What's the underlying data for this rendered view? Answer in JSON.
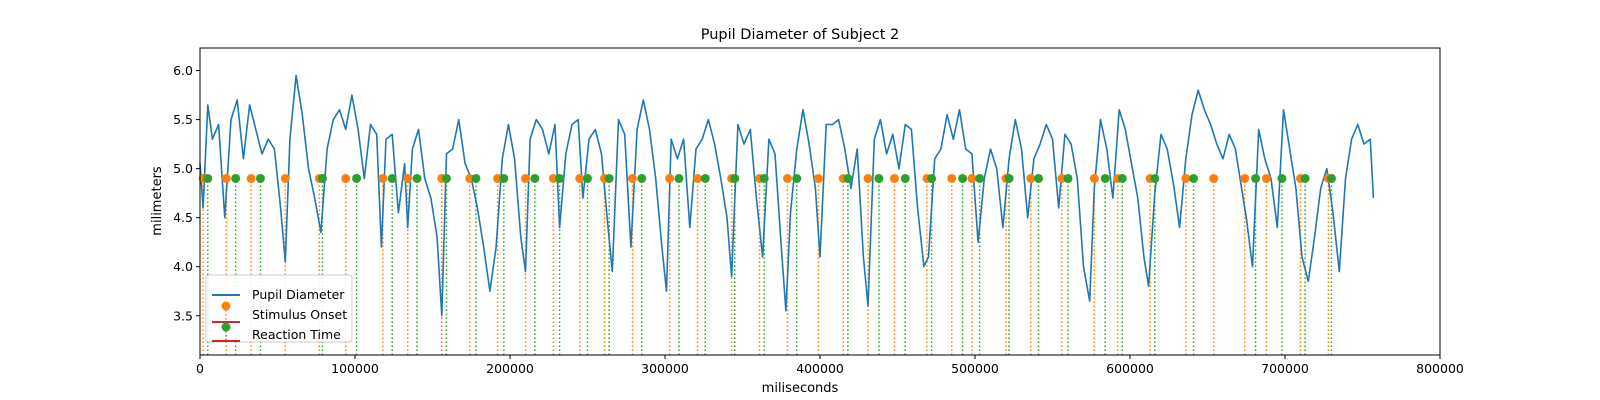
{
  "chart_data": {
    "type": "line",
    "title": "Pupil Diameter of Subject 2",
    "xlabel": "miliseconds",
    "ylabel": "milimeters",
    "xlim": [
      0,
      800000
    ],
    "ylim": [
      3.1,
      6.23
    ],
    "xticks": [
      0,
      100000,
      200000,
      300000,
      400000,
      500000,
      600000,
      700000,
      800000
    ],
    "xtick_labels": [
      "0",
      "100000",
      "200000",
      "300000",
      "400000",
      "500000",
      "600000",
      "700000",
      "800000"
    ],
    "yticks": [
      3.5,
      4.0,
      4.5,
      5.0,
      5.5,
      6.0
    ],
    "ytick_labels": [
      "3.5",
      "4.0",
      "4.5",
      "5.0",
      "5.5",
      "6.0"
    ],
    "grid": false,
    "legend_position": "lower-left",
    "legend": [
      "Pupil Diameter",
      "Stimulus Onset",
      "Reaction Time"
    ],
    "colors": {
      "pupil": "#1f77b4",
      "stimulus": "#ff7f0e",
      "reaction": "#2ca02c",
      "legend_stem": "#d62728"
    },
    "marker_y": 4.9,
    "series": [
      {
        "name": "Pupil Diameter",
        "kind": "line",
        "x": [
          0,
          2000,
          5000,
          8000,
          12000,
          16000,
          20000,
          24000,
          28000,
          32000,
          36000,
          40000,
          44000,
          48000,
          52000,
          55000,
          58000,
          62000,
          66000,
          70000,
          74000,
          78000,
          82000,
          86000,
          90000,
          94000,
          98000,
          102000,
          106000,
          110000,
          114000,
          117000,
          120000,
          124000,
          128000,
          132000,
          134000,
          137000,
          141000,
          145000,
          149000,
          153000,
          156000,
          159000,
          163000,
          167000,
          171000,
          175000,
          179000,
          183000,
          187000,
          191000,
          195000,
          199000,
          203000,
          207000,
          210000,
          213000,
          217000,
          221000,
          225000,
          229000,
          232000,
          236000,
          240000,
          244000,
          247000,
          251000,
          255000,
          259000,
          263000,
          266000,
          270000,
          274000,
          278000,
          282000,
          286000,
          290000,
          294000,
          298000,
          301000,
          304000,
          308000,
          312000,
          316000,
          320000,
          324000,
          328000,
          332000,
          336000,
          340000,
          343000,
          347000,
          351000,
          355000,
          359000,
          363000,
          367000,
          371000,
          375000,
          378000,
          381000,
          385000,
          389000,
          393000,
          397000,
          400000,
          404000,
          408000,
          412000,
          416000,
          420000,
          424000,
          428000,
          431000,
          435000,
          439000,
          443000,
          447000,
          451000,
          455000,
          459000,
          463000,
          467000,
          470000,
          474000,
          478000,
          482000,
          486000,
          490000,
          494000,
          498000,
          502000,
          506000,
          510000,
          514000,
          518000,
          522000,
          526000,
          530000,
          534000,
          538000,
          542000,
          546000,
          550000,
          554000,
          558000,
          562000,
          566000,
          570000,
          574000,
          577000,
          581000,
          585000,
          589000,
          593000,
          597000,
          601000,
          605000,
          609000,
          612000,
          616000,
          620000,
          624000,
          628000,
          632000,
          636000,
          640000,
          644000,
          648000,
          652000,
          656000,
          660000,
          664000,
          668000,
          672000,
          675000,
          679000,
          683000,
          687000,
          691000,
          695000,
          699000,
          703000,
          707000,
          711000,
          715000,
          719000,
          723000,
          727000,
          731000,
          735000,
          739000,
          743000,
          747000,
          751000,
          755000,
          757000
        ],
        "y": [
          5.05,
          4.6,
          5.65,
          5.3,
          5.45,
          4.5,
          5.5,
          5.7,
          5.1,
          5.65,
          5.4,
          5.15,
          5.3,
          5.2,
          4.6,
          4.05,
          5.3,
          5.95,
          5.55,
          5.0,
          4.7,
          4.35,
          5.2,
          5.5,
          5.6,
          5.4,
          5.75,
          5.4,
          4.9,
          5.45,
          5.35,
          4.2,
          5.3,
          5.35,
          4.55,
          5.05,
          4.4,
          5.2,
          5.4,
          4.9,
          4.7,
          4.3,
          3.5,
          5.15,
          5.2,
          5.5,
          5.05,
          4.9,
          4.6,
          4.2,
          3.75,
          4.2,
          5.1,
          5.45,
          5.1,
          4.3,
          3.95,
          5.3,
          5.5,
          5.4,
          5.15,
          5.45,
          4.4,
          5.15,
          5.45,
          5.5,
          4.7,
          5.3,
          5.4,
          5.15,
          4.45,
          3.95,
          5.5,
          5.35,
          4.2,
          5.4,
          5.7,
          5.4,
          4.9,
          4.2,
          3.75,
          5.3,
          5.1,
          5.3,
          4.4,
          5.2,
          5.3,
          5.5,
          5.25,
          4.9,
          4.5,
          3.9,
          5.45,
          5.25,
          5.4,
          4.7,
          4.1,
          5.3,
          5.15,
          4.2,
          3.55,
          4.55,
          5.2,
          5.6,
          5.25,
          4.8,
          4.1,
          5.45,
          5.45,
          5.5,
          5.2,
          4.8,
          5.2,
          4.1,
          3.6,
          5.3,
          5.5,
          5.15,
          5.35,
          5.0,
          5.45,
          5.4,
          4.6,
          4.0,
          4.1,
          5.1,
          5.2,
          5.55,
          5.3,
          5.6,
          5.2,
          5.15,
          4.25,
          4.9,
          5.2,
          5.0,
          4.4,
          5.1,
          5.5,
          5.2,
          4.5,
          5.1,
          5.25,
          5.45,
          5.3,
          4.6,
          5.35,
          5.25,
          4.9,
          4.0,
          3.65,
          4.8,
          5.5,
          5.2,
          4.7,
          5.6,
          5.4,
          5.05,
          4.7,
          4.1,
          3.8,
          4.75,
          5.35,
          5.2,
          4.85,
          4.4,
          5.1,
          5.55,
          5.8,
          5.6,
          5.45,
          5.25,
          5.1,
          5.35,
          5.2,
          4.8,
          4.5,
          4.0,
          5.4,
          5.1,
          4.9,
          4.4,
          5.6,
          5.2,
          4.8,
          4.1,
          3.85,
          4.3,
          4.8,
          5.0,
          4.55,
          3.95,
          4.9,
          5.3,
          5.45,
          5.25,
          5.3,
          4.7
        ]
      },
      {
        "name": "Stimulus Onset",
        "kind": "stem",
        "x": [
          2000,
          17000,
          33000,
          55000,
          77000,
          94000,
          118000,
          134000,
          156000,
          174000,
          192000,
          210000,
          228000,
          245000,
          261000,
          279000,
          303000,
          321000,
          343000,
          361000,
          379000,
          399000,
          415000,
          431000,
          448000,
          469000,
          485000,
          498000,
          520000,
          536000,
          556000,
          577000,
          592000,
          613000,
          636000,
          654000,
          674000,
          688000,
          710000,
          728000
        ]
      },
      {
        "name": "Reaction Time",
        "kind": "stem",
        "x": [
          5000,
          23000,
          39000,
          79000,
          101000,
          124000,
          140000,
          159000,
          178000,
          196000,
          216000,
          232000,
          250000,
          264000,
          285000,
          309000,
          326000,
          345000,
          364000,
          385000,
          418000,
          438000,
          455000,
          472000,
          492000,
          503000,
          522000,
          541000,
          560000,
          584000,
          595000,
          616000,
          641000,
          681000,
          698000,
          713000,
          730000
        ]
      }
    ]
  }
}
